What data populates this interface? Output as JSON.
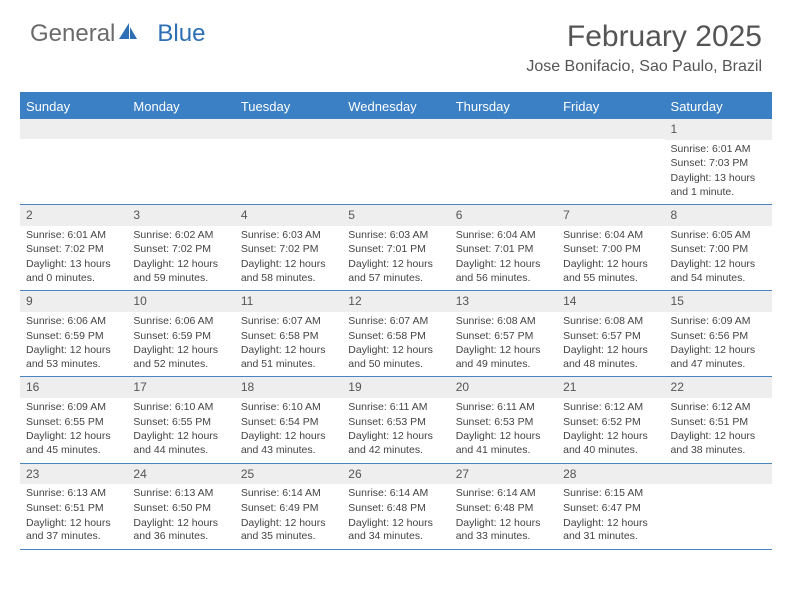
{
  "logo": {
    "part1": "General",
    "part2": "Blue"
  },
  "title": "February 2025",
  "location": "Jose Bonifacio, Sao Paulo, Brazil",
  "colors": {
    "header_bar": "#3b7fc4",
    "header_text": "#ffffff",
    "daynum_bg": "#eeeeee",
    "week_border": "#4a85c0",
    "body_text": "#444444",
    "title_text": "#555555",
    "logo_gray": "#6b6b6b",
    "logo_blue": "#2d6fb5",
    "background": "#ffffff"
  },
  "typography": {
    "title_fontsize": 30,
    "location_fontsize": 16,
    "weekday_fontsize": 13,
    "daynum_fontsize": 12,
    "cell_fontsize": 10.5,
    "font_family": "Arial"
  },
  "weekdays": [
    "Sunday",
    "Monday",
    "Tuesday",
    "Wednesday",
    "Thursday",
    "Friday",
    "Saturday"
  ],
  "weeks": [
    [
      {
        "n": "",
        "sr": "",
        "ss": "",
        "dl": ""
      },
      {
        "n": "",
        "sr": "",
        "ss": "",
        "dl": ""
      },
      {
        "n": "",
        "sr": "",
        "ss": "",
        "dl": ""
      },
      {
        "n": "",
        "sr": "",
        "ss": "",
        "dl": ""
      },
      {
        "n": "",
        "sr": "",
        "ss": "",
        "dl": ""
      },
      {
        "n": "",
        "sr": "",
        "ss": "",
        "dl": ""
      },
      {
        "n": "1",
        "sr": "Sunrise: 6:01 AM",
        "ss": "Sunset: 7:03 PM",
        "dl": "Daylight: 13 hours and 1 minute."
      }
    ],
    [
      {
        "n": "2",
        "sr": "Sunrise: 6:01 AM",
        "ss": "Sunset: 7:02 PM",
        "dl": "Daylight: 13 hours and 0 minutes."
      },
      {
        "n": "3",
        "sr": "Sunrise: 6:02 AM",
        "ss": "Sunset: 7:02 PM",
        "dl": "Daylight: 12 hours and 59 minutes."
      },
      {
        "n": "4",
        "sr": "Sunrise: 6:03 AM",
        "ss": "Sunset: 7:02 PM",
        "dl": "Daylight: 12 hours and 58 minutes."
      },
      {
        "n": "5",
        "sr": "Sunrise: 6:03 AM",
        "ss": "Sunset: 7:01 PM",
        "dl": "Daylight: 12 hours and 57 minutes."
      },
      {
        "n": "6",
        "sr": "Sunrise: 6:04 AM",
        "ss": "Sunset: 7:01 PM",
        "dl": "Daylight: 12 hours and 56 minutes."
      },
      {
        "n": "7",
        "sr": "Sunrise: 6:04 AM",
        "ss": "Sunset: 7:00 PM",
        "dl": "Daylight: 12 hours and 55 minutes."
      },
      {
        "n": "8",
        "sr": "Sunrise: 6:05 AM",
        "ss": "Sunset: 7:00 PM",
        "dl": "Daylight: 12 hours and 54 minutes."
      }
    ],
    [
      {
        "n": "9",
        "sr": "Sunrise: 6:06 AM",
        "ss": "Sunset: 6:59 PM",
        "dl": "Daylight: 12 hours and 53 minutes."
      },
      {
        "n": "10",
        "sr": "Sunrise: 6:06 AM",
        "ss": "Sunset: 6:59 PM",
        "dl": "Daylight: 12 hours and 52 minutes."
      },
      {
        "n": "11",
        "sr": "Sunrise: 6:07 AM",
        "ss": "Sunset: 6:58 PM",
        "dl": "Daylight: 12 hours and 51 minutes."
      },
      {
        "n": "12",
        "sr": "Sunrise: 6:07 AM",
        "ss": "Sunset: 6:58 PM",
        "dl": "Daylight: 12 hours and 50 minutes."
      },
      {
        "n": "13",
        "sr": "Sunrise: 6:08 AM",
        "ss": "Sunset: 6:57 PM",
        "dl": "Daylight: 12 hours and 49 minutes."
      },
      {
        "n": "14",
        "sr": "Sunrise: 6:08 AM",
        "ss": "Sunset: 6:57 PM",
        "dl": "Daylight: 12 hours and 48 minutes."
      },
      {
        "n": "15",
        "sr": "Sunrise: 6:09 AM",
        "ss": "Sunset: 6:56 PM",
        "dl": "Daylight: 12 hours and 47 minutes."
      }
    ],
    [
      {
        "n": "16",
        "sr": "Sunrise: 6:09 AM",
        "ss": "Sunset: 6:55 PM",
        "dl": "Daylight: 12 hours and 45 minutes."
      },
      {
        "n": "17",
        "sr": "Sunrise: 6:10 AM",
        "ss": "Sunset: 6:55 PM",
        "dl": "Daylight: 12 hours and 44 minutes."
      },
      {
        "n": "18",
        "sr": "Sunrise: 6:10 AM",
        "ss": "Sunset: 6:54 PM",
        "dl": "Daylight: 12 hours and 43 minutes."
      },
      {
        "n": "19",
        "sr": "Sunrise: 6:11 AM",
        "ss": "Sunset: 6:53 PM",
        "dl": "Daylight: 12 hours and 42 minutes."
      },
      {
        "n": "20",
        "sr": "Sunrise: 6:11 AM",
        "ss": "Sunset: 6:53 PM",
        "dl": "Daylight: 12 hours and 41 minutes."
      },
      {
        "n": "21",
        "sr": "Sunrise: 6:12 AM",
        "ss": "Sunset: 6:52 PM",
        "dl": "Daylight: 12 hours and 40 minutes."
      },
      {
        "n": "22",
        "sr": "Sunrise: 6:12 AM",
        "ss": "Sunset: 6:51 PM",
        "dl": "Daylight: 12 hours and 38 minutes."
      }
    ],
    [
      {
        "n": "23",
        "sr": "Sunrise: 6:13 AM",
        "ss": "Sunset: 6:51 PM",
        "dl": "Daylight: 12 hours and 37 minutes."
      },
      {
        "n": "24",
        "sr": "Sunrise: 6:13 AM",
        "ss": "Sunset: 6:50 PM",
        "dl": "Daylight: 12 hours and 36 minutes."
      },
      {
        "n": "25",
        "sr": "Sunrise: 6:14 AM",
        "ss": "Sunset: 6:49 PM",
        "dl": "Daylight: 12 hours and 35 minutes."
      },
      {
        "n": "26",
        "sr": "Sunrise: 6:14 AM",
        "ss": "Sunset: 6:48 PM",
        "dl": "Daylight: 12 hours and 34 minutes."
      },
      {
        "n": "27",
        "sr": "Sunrise: 6:14 AM",
        "ss": "Sunset: 6:48 PM",
        "dl": "Daylight: 12 hours and 33 minutes."
      },
      {
        "n": "28",
        "sr": "Sunrise: 6:15 AM",
        "ss": "Sunset: 6:47 PM",
        "dl": "Daylight: 12 hours and 31 minutes."
      },
      {
        "n": "",
        "sr": "",
        "ss": "",
        "dl": ""
      }
    ]
  ]
}
